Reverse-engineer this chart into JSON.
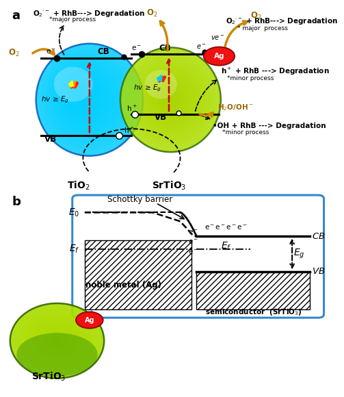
{
  "panel_a_label": "a",
  "panel_b_label": "b",
  "ag_text": "Ag",
  "tio2_text": "TiO$_2$",
  "srtio3_text": "SrTiO$_3$",
  "cb_text": "CB",
  "vb_text": "VB",
  "hv_tio2": "hv ≥ E$_g$",
  "hv_srtio3": "hv ≥ E$_g$",
  "h_plus": "h$^+$",
  "e_minus": "e$^-$",
  "o2_rhb_left": "O$_2$$^{\\cdot-}$ + RhB---> Degradation",
  "major_left": "*major process",
  "o2_rhb_right": "O$_2$$^{\\cdot-}$ + RhB---> Degradation",
  "major_right": "* major  process",
  "h_rhb": "h$^+$ + RhB ---> Degradation",
  "minor1": "*minor process",
  "h2o_oh": "H$_2$O/OH$^-$",
  "oh_rhb": "•OH + RhB ---> Degradation",
  "minor2": "*minor process",
  "o2_left": "O$_2$",
  "o2_right": "O$_2$",
  "schottky_text": "Schottky barrier",
  "noble_metal": "noble metal (Ag)",
  "semiconductor": "semiconductor  (SrTiO$_3$)"
}
